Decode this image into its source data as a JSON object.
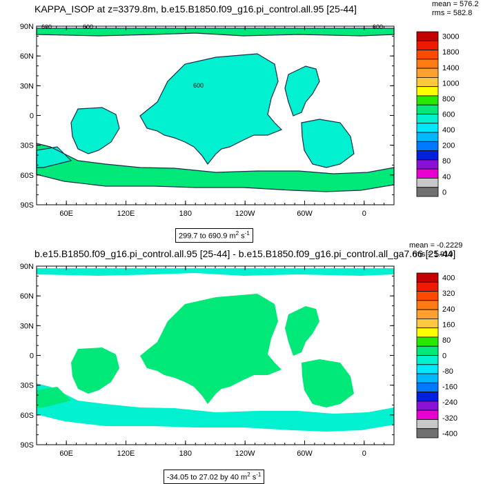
{
  "colors": {
    "land": "#ffffff",
    "coast": "#1a2a4a"
  },
  "chart_data": [
    {
      "type": "heatmap",
      "title": "KAPPA_ISOP at z=3379.8m, b.e15.B1850.f09_g16.pi_control.all.95 [25-44]",
      "mean_label": "mean = 576.2",
      "rms_label": "rms = 582.8",
      "range_text": "299.7 to 690.9 m",
      "range_exp": "2",
      "range_unit_tail": " s",
      "range_exp2": "-1",
      "mean": 576.2,
      "rms": 582.8,
      "min": 299.7,
      "max": 690.9,
      "x_ticks": [
        "60E",
        "120E",
        "180",
        "120W",
        "60W",
        "0"
      ],
      "y_ticks": [
        "90N",
        "60N",
        "30N",
        "0",
        "30S",
        "60S",
        "90S"
      ],
      "contour_annotations": [
        "600",
        "600",
        "600",
        "600"
      ],
      "colorbar_labels": [
        "3000",
        "1800",
        "1400",
        "1000",
        "800",
        "600",
        "400",
        "200",
        "80",
        "40",
        "0"
      ],
      "colorbar_colors": [
        "#c40000",
        "#ee1a00",
        "#ff4a00",
        "#ff7a10",
        "#ffa030",
        "#ffc840",
        "#ffff00",
        "#28e800",
        "#00e878",
        "#00f0d0",
        "#00e8ff",
        "#00b8ff",
        "#0078ff",
        "#0020e0",
        "#8a10d8",
        "#e800d0",
        "#c8c8c8",
        "#707070"
      ],
      "dominant_fill": "#00f0d0",
      "secondary_fill": "#00e878"
    },
    {
      "type": "heatmap",
      "title": "b.e15.B1850.f09_g16.pi_control.all.95 [25-44] - b.e15.B1850.f09_g16.pi_control.all_ga7.66 [25-44]",
      "mean_label": "mean = -0.2229",
      "rms_label": "rms = 1.919",
      "range_text": "-34.05 to 27.02 by 40 m",
      "range_exp": "2",
      "range_unit_tail": " s",
      "range_exp2": "-1",
      "mean": -0.2229,
      "rms": 1.919,
      "min": -34.05,
      "max": 27.02,
      "x_ticks": [
        "60E",
        "120E",
        "180",
        "120W",
        "60W",
        "0"
      ],
      "y_ticks": [
        "90N",
        "60N",
        "30N",
        "0",
        "30S",
        "60S",
        "90S"
      ],
      "colorbar_labels": [
        "400",
        "320",
        "240",
        "160",
        "80",
        "0",
        "-80",
        "-160",
        "-240",
        "-320",
        "-400"
      ],
      "colorbar_colors": [
        "#c40000",
        "#ee1a00",
        "#ff4a00",
        "#ff7a10",
        "#ffa030",
        "#ffc840",
        "#ffff00",
        "#28e800",
        "#00e878",
        "#00f0d0",
        "#00e8ff",
        "#00b8ff",
        "#0078ff",
        "#0020e0",
        "#8a10d8",
        "#e800d0",
        "#c8c8c8",
        "#707070"
      ],
      "dominant_fill": "#00e878",
      "secondary_fill": "#00f0d0"
    }
  ]
}
